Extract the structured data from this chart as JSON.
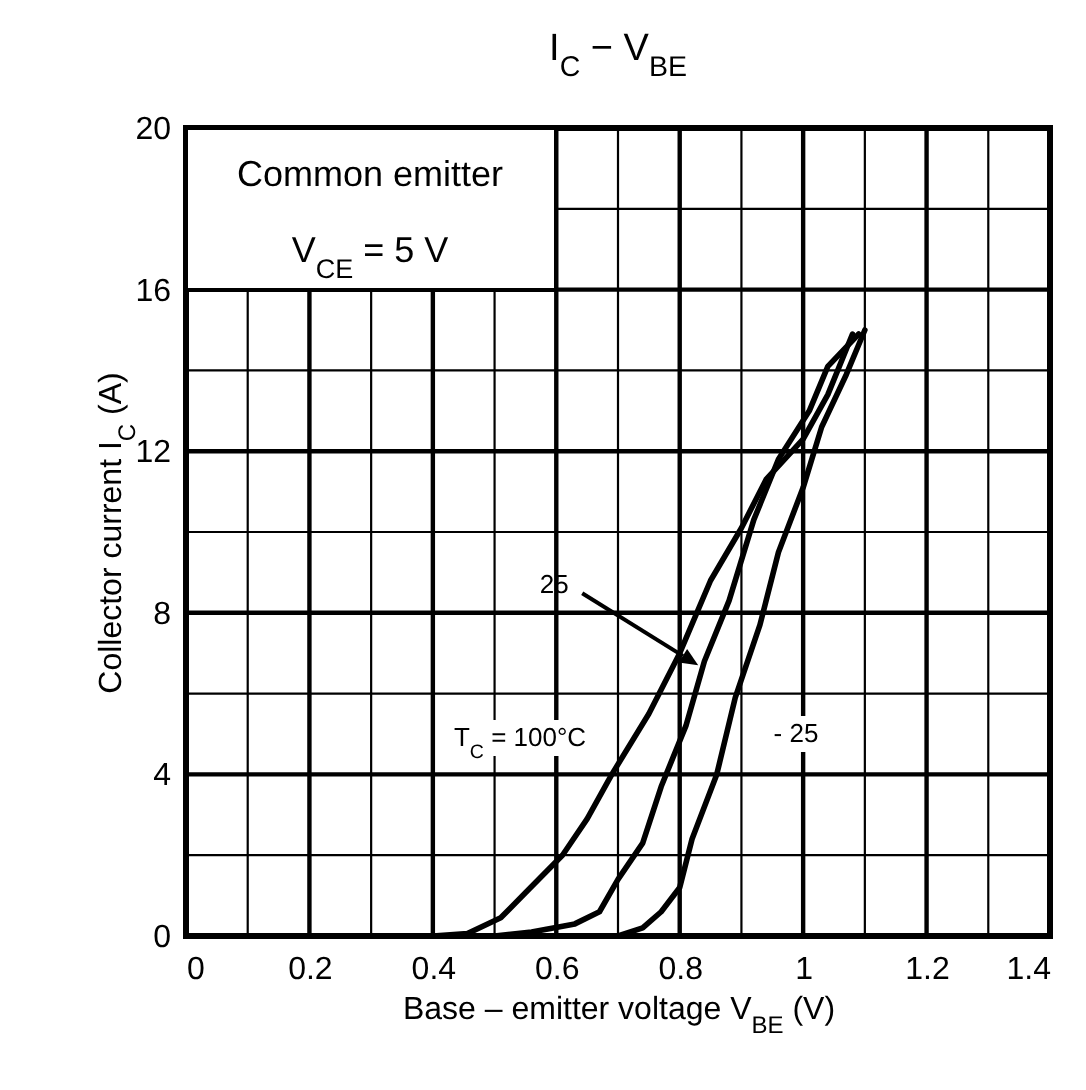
{
  "chart_data": {
    "type": "line",
    "title": "I$_{C}$ − V$_{BE}$",
    "xlabel": "Base – emitter voltage  V$_{BE}$ (V)",
    "ylabel": "Collector current   I$_{C}$ (A)",
    "xlim": [
      0,
      1.4
    ],
    "ylim": [
      0,
      20
    ],
    "xticks": [
      0,
      {
        "value": 0.1,
        "label": null
      },
      0.2,
      {
        "value": 0.3,
        "label": null
      },
      0.4,
      {
        "value": 0.5,
        "label": null
      },
      0.6,
      {
        "value": 0.7,
        "label": null
      },
      0.8,
      {
        "value": 0.9,
        "label": null
      },
      1,
      {
        "value": 1.1,
        "label": null
      },
      1.2,
      {
        "value": 1.3,
        "label": null
      },
      1.4
    ],
    "yticks": [
      0,
      {
        "value": 2,
        "label": null
      },
      4,
      {
        "value": 6,
        "label": null
      },
      8,
      {
        "value": 10,
        "label": null
      },
      12,
      {
        "value": 14,
        "label": null
      },
      16,
      {
        "value": 18,
        "label": null
      },
      20
    ],
    "grid": true,
    "line_style": "solid",
    "marker": "none",
    "series": [
      {
        "color": "#000000",
        "x": [
          0.4,
          0.456,
          0.51,
          0.55,
          0.61,
          0.65,
          0.69,
          0.75,
          0.8,
          0.85,
          0.9,
          0.94,
          1.0,
          1.04,
          1.08
        ],
        "values": [
          0,
          0.06,
          0.45,
          1.07,
          2.0,
          2.9,
          4.0,
          5.5,
          7.0,
          8.8,
          10.1,
          11.3,
          12.3,
          13.4,
          14.9
        ]
      },
      {
        "color": "#000000",
        "x": [
          0.5,
          0.56,
          0.63,
          0.67,
          0.7,
          0.74,
          0.77,
          0.81,
          0.84,
          0.88,
          0.92,
          0.96,
          1.01,
          1.04,
          1.09
        ],
        "values": [
          0,
          0.1,
          0.3,
          0.6,
          1.4,
          2.3,
          3.7,
          5.2,
          6.8,
          8.3,
          10.3,
          11.8,
          13.0,
          14.1,
          14.9
        ]
      },
      {
        "color": "#000000",
        "x": [
          0.7,
          0.74,
          0.77,
          0.8,
          0.82,
          0.86,
          0.89,
          0.93,
          0.96,
          1.0,
          1.03,
          1.07,
          1.1
        ],
        "values": [
          0,
          0.2,
          0.6,
          1.2,
          2.4,
          4.0,
          5.9,
          7.7,
          9.5,
          11.1,
          12.6,
          13.9,
          15.0
        ]
      }
    ],
    "annotations": [
      "Common emitter",
      "V$_{CE}$ = 5 V",
      {
        "text": "25",
        "x": 0.83,
        "y": 6.7
      },
      "T$_{C}$ = 100°C",
      "- 25"
    ]
  }
}
